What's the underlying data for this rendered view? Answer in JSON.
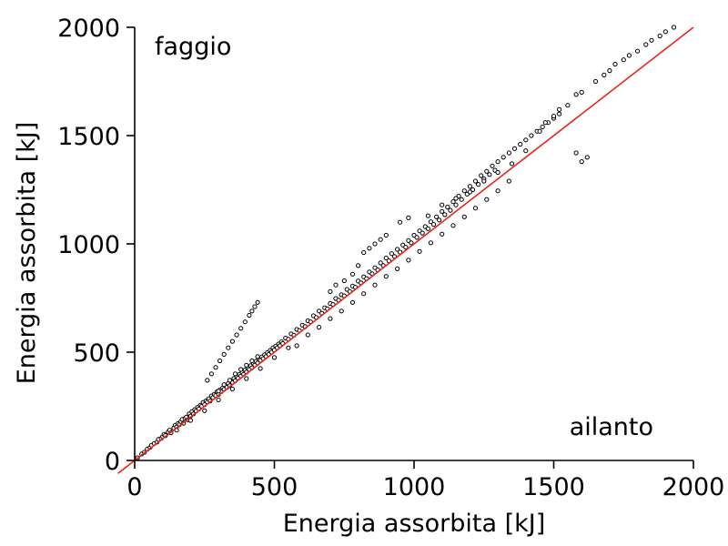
{
  "chart_data": {
    "type": "scatter",
    "title": "",
    "xlabel": "Energia assorbita [kJ]",
    "ylabel": "Energia assorbita [kJ]",
    "xlim": [
      0,
      2000
    ],
    "ylim": [
      0,
      2000
    ],
    "xticks": [
      0,
      500,
      1000,
      1500,
      2000
    ],
    "yticks": [
      0,
      500,
      1000,
      1500,
      2000
    ],
    "grid": false,
    "annotations": {
      "top_left": "faggio",
      "bottom_right": "ailanto"
    },
    "colors": {
      "points": "#000000",
      "point_fill": "#ffffff",
      "reference_line": "#e8251b",
      "axes": "#000000"
    },
    "reference_line": {
      "x": [
        -60,
        2000
      ],
      "y": [
        -60,
        2000
      ],
      "label": ""
    },
    "series": [
      {
        "points": [
          [
            10,
            12
          ],
          [
            25,
            30
          ],
          [
            35,
            38
          ],
          [
            45,
            52
          ],
          [
            55,
            60
          ],
          [
            60,
            70
          ],
          [
            70,
            78
          ],
          [
            80,
            85
          ],
          [
            85,
            98
          ],
          [
            95,
            102
          ],
          [
            100,
            110
          ],
          [
            105,
            120
          ],
          [
            110,
            115
          ],
          [
            120,
            132
          ],
          [
            125,
            140
          ],
          [
            130,
            128
          ],
          [
            140,
            150
          ],
          [
            145,
            162
          ],
          [
            150,
            155
          ],
          [
            155,
            170
          ],
          [
            160,
            165
          ],
          [
            165,
            180
          ],
          [
            170,
            190
          ],
          [
            175,
            172
          ],
          [
            180,
            195
          ],
          [
            185,
            200
          ],
          [
            190,
            188
          ],
          [
            195,
            215
          ],
          [
            200,
            205
          ],
          [
            205,
            225
          ],
          [
            210,
            215
          ],
          [
            215,
            235
          ],
          [
            220,
            228
          ],
          [
            225,
            245
          ],
          [
            230,
            238
          ],
          [
            235,
            255
          ],
          [
            240,
            250
          ],
          [
            245,
            268
          ],
          [
            250,
            258
          ],
          [
            255,
            275
          ],
          [
            260,
            270
          ],
          [
            265,
            285
          ],
          [
            270,
            275
          ],
          [
            275,
            298
          ],
          [
            280,
            290
          ],
          [
            285,
            305
          ],
          [
            290,
            300
          ],
          [
            295,
            318
          ],
          [
            300,
            305
          ],
          [
            305,
            325
          ],
          [
            310,
            318
          ],
          [
            315,
            335
          ],
          [
            320,
            328
          ],
          [
            325,
            348
          ],
          [
            330,
            338
          ],
          [
            335,
            355
          ],
          [
            340,
            345
          ],
          [
            345,
            368
          ],
          [
            350,
            360
          ],
          [
            355,
            378
          ],
          [
            360,
            368
          ],
          [
            365,
            388
          ],
          [
            370,
            380
          ],
          [
            375,
            398
          ],
          [
            380,
            390
          ],
          [
            385,
            405
          ],
          [
            390,
            398
          ],
          [
            395,
            418
          ],
          [
            400,
            408
          ],
          [
            405,
            428
          ],
          [
            410,
            420
          ],
          [
            415,
            438
          ],
          [
            420,
            428
          ],
          [
            425,
            448
          ],
          [
            430,
            440
          ],
          [
            435,
            458
          ],
          [
            440,
            450
          ],
          [
            445,
            468
          ],
          [
            450,
            462
          ],
          [
            455,
            478
          ],
          [
            460,
            470
          ],
          [
            465,
            488
          ],
          [
            470,
            480
          ],
          [
            475,
            498
          ],
          [
            480,
            490
          ],
          [
            485,
            508
          ],
          [
            490,
            500
          ],
          [
            495,
            520
          ],
          [
            500,
            510
          ],
          [
            505,
            528
          ],
          [
            510,
            520
          ],
          [
            515,
            538
          ],
          [
            520,
            530
          ],
          [
            525,
            548
          ],
          [
            530,
            540
          ],
          [
            540,
            565
          ],
          [
            550,
            560
          ],
          [
            560,
            585
          ],
          [
            570,
            578
          ],
          [
            580,
            605
          ],
          [
            590,
            600
          ],
          [
            600,
            625
          ],
          [
            610,
            618
          ],
          [
            620,
            645
          ],
          [
            630,
            640
          ],
          [
            640,
            668
          ],
          [
            650,
            660
          ],
          [
            660,
            690
          ],
          [
            670,
            680
          ],
          [
            680,
            705
          ],
          [
            690,
            700
          ],
          [
            700,
            725
          ],
          [
            710,
            720
          ],
          [
            720,
            748
          ],
          [
            730,
            740
          ],
          [
            740,
            765
          ],
          [
            750,
            760
          ],
          [
            760,
            790
          ],
          [
            770,
            780
          ],
          [
            780,
            805
          ],
          [
            790,
            800
          ],
          [
            800,
            828
          ],
          [
            810,
            820
          ],
          [
            820,
            848
          ],
          [
            830,
            840
          ],
          [
            840,
            870
          ],
          [
            850,
            862
          ],
          [
            860,
            890
          ],
          [
            870,
            880
          ],
          [
            880,
            912
          ],
          [
            890,
            900
          ],
          [
            900,
            935
          ],
          [
            910,
            922
          ],
          [
            920,
            955
          ],
          [
            930,
            942
          ],
          [
            940,
            975
          ],
          [
            950,
            962
          ],
          [
            960,
            995
          ],
          [
            970,
            985
          ],
          [
            980,
            1015
          ],
          [
            990,
            1005
          ],
          [
            1000,
            1040
          ],
          [
            1010,
            1030
          ],
          [
            1020,
            1060
          ],
          [
            1030,
            1050
          ],
          [
            1040,
            1080
          ],
          [
            1050,
            1070
          ],
          [
            1060,
            1102
          ],
          [
            1070,
            1090
          ],
          [
            1080,
            1125
          ],
          [
            1090,
            1110
          ],
          [
            1100,
            1150
          ],
          [
            1110,
            1135
          ],
          [
            1120,
            1170
          ],
          [
            1130,
            1155
          ],
          [
            1140,
            1195
          ],
          [
            1150,
            1180
          ],
          [
            1160,
            1220
          ],
          [
            1170,
            1205
          ],
          [
            1180,
            1245
          ],
          [
            1190,
            1230
          ],
          [
            1200,
            1265
          ],
          [
            1210,
            1250
          ],
          [
            1220,
            1290
          ],
          [
            1230,
            1275
          ],
          [
            1240,
            1315
          ],
          [
            1250,
            1300
          ],
          [
            1260,
            1335
          ],
          [
            1270,
            1320
          ],
          [
            1280,
            1360
          ],
          [
            1290,
            1340
          ],
          [
            1300,
            1380
          ],
          [
            1320,
            1400
          ],
          [
            1340,
            1420
          ],
          [
            1360,
            1440
          ],
          [
            1380,
            1460
          ],
          [
            1400,
            1480
          ],
          [
            1420,
            1500
          ],
          [
            1440,
            1520
          ],
          [
            1460,
            1540
          ],
          [
            1480,
            1560
          ],
          [
            1500,
            1580
          ],
          [
            1520,
            1600
          ],
          [
            580,
            530
          ],
          [
            620,
            580
          ],
          [
            660,
            615
          ],
          [
            700,
            655
          ],
          [
            740,
            690
          ],
          [
            780,
            730
          ],
          [
            820,
            770
          ],
          [
            860,
            810
          ],
          [
            900,
            850
          ],
          [
            940,
            885
          ],
          [
            980,
            925
          ],
          [
            1020,
            965
          ],
          [
            1060,
            1005
          ],
          [
            1100,
            1045
          ],
          [
            1140,
            1085
          ],
          [
            1180,
            1125
          ],
          [
            1220,
            1165
          ],
          [
            1260,
            1205
          ],
          [
            1300,
            1245
          ],
          [
            1340,
            1290
          ],
          [
            150,
            140
          ],
          [
            200,
            185
          ],
          [
            250,
            230
          ],
          [
            300,
            280
          ],
          [
            350,
            330
          ],
          [
            400,
            378
          ],
          [
            450,
            425
          ],
          [
            500,
            475
          ],
          [
            550,
            520
          ],
          [
            700,
            780
          ],
          [
            720,
            810
          ],
          [
            750,
            830
          ],
          [
            780,
            860
          ],
          [
            800,
            900
          ],
          [
            820,
            960
          ],
          [
            840,
            980
          ],
          [
            860,
            1000
          ],
          [
            880,
            1020
          ],
          [
            900,
            1040
          ],
          [
            950,
            1100
          ],
          [
            980,
            1120
          ],
          [
            1050,
            1130
          ],
          [
            1100,
            1180
          ],
          [
            1150,
            1210
          ],
          [
            1200,
            1240
          ],
          [
            1250,
            1290
          ],
          [
            1300,
            1330
          ],
          [
            1350,
            1370
          ],
          [
            1400,
            1430
          ],
          [
            1450,
            1520
          ],
          [
            1470,
            1560
          ],
          [
            1500,
            1590
          ],
          [
            1520,
            1620
          ],
          [
            1550,
            1640
          ],
          [
            1580,
            1690
          ],
          [
            1600,
            1700
          ],
          [
            1650,
            1750
          ],
          [
            1680,
            1780
          ],
          [
            1700,
            1800
          ],
          [
            1720,
            1830
          ],
          [
            1750,
            1850
          ],
          [
            1770,
            1870
          ],
          [
            1800,
            1890
          ],
          [
            1830,
            1920
          ],
          [
            1850,
            1940
          ],
          [
            1880,
            1960
          ],
          [
            1900,
            1980
          ],
          [
            1930,
            2000
          ],
          [
            1580,
            1420
          ],
          [
            1600,
            1380
          ],
          [
            1620,
            1400
          ],
          [
            260,
            370
          ],
          [
            275,
            400
          ],
          [
            290,
            430
          ],
          [
            305,
            460
          ],
          [
            320,
            490
          ],
          [
            335,
            520
          ],
          [
            350,
            550
          ],
          [
            365,
            580
          ],
          [
            380,
            610
          ],
          [
            395,
            640
          ],
          [
            410,
            670
          ],
          [
            420,
            690
          ],
          [
            430,
            710
          ],
          [
            440,
            730
          ],
          [
            300,
            320
          ],
          [
            320,
            350
          ],
          [
            340,
            370
          ],
          [
            360,
            400
          ],
          [
            380,
            420
          ],
          [
            400,
            440
          ],
          [
            420,
            460
          ],
          [
            440,
            480
          ]
        ]
      }
    ]
  }
}
